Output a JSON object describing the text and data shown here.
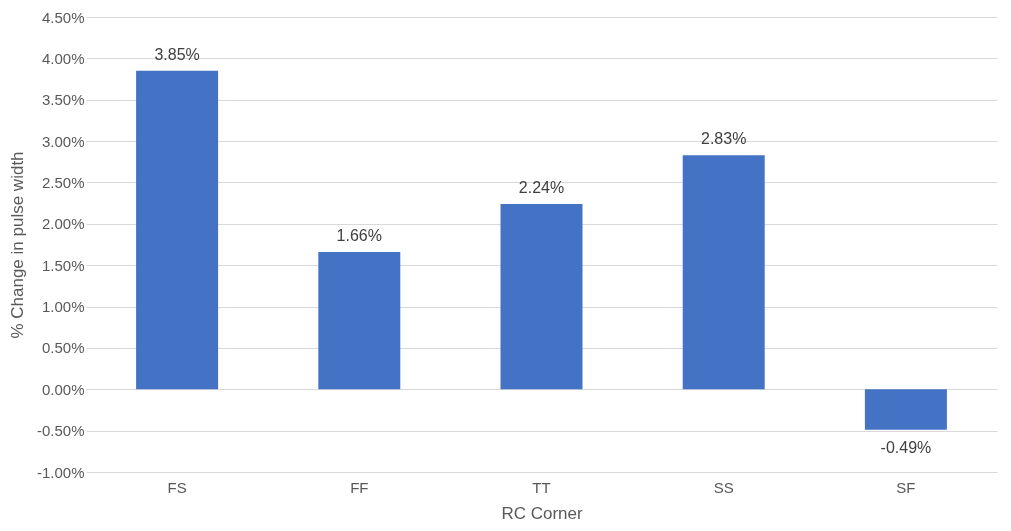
{
  "chart_data": {
    "type": "bar",
    "xlabel": "RC Corner",
    "ylabel": "% Change in pulse width",
    "categories": [
      "FS",
      "FF",
      "TT",
      "SS",
      "SF"
    ],
    "values": [
      3.85,
      1.66,
      2.24,
      2.83,
      -0.49
    ],
    "value_labels": [
      "3.85%",
      "1.66%",
      "2.24%",
      "2.83%",
      "-0.49%"
    ],
    "color": "#4472c4",
    "ylim": [
      -1.0,
      4.5
    ],
    "yticks": [
      {
        "value": -1.0,
        "label": "-1.00%"
      },
      {
        "value": -0.5,
        "label": "-0.50%"
      },
      {
        "value": 0,
        "label": "0.00%"
      },
      {
        "value": 0.5,
        "label": "0.50%"
      },
      {
        "value": 1.0,
        "label": "1.00%"
      },
      {
        "value": 1.5,
        "label": "1.50%"
      },
      {
        "value": 2.0,
        "label": "2.00%"
      },
      {
        "value": 2.5,
        "label": "2.50%"
      },
      {
        "value": 3.0,
        "label": "3.00%"
      },
      {
        "value": 3.5,
        "label": "3.50%"
      },
      {
        "value": 4.0,
        "label": "4.00%"
      },
      {
        "value": 4.5,
        "label": "4.50%"
      }
    ],
    "grid": "y"
  }
}
